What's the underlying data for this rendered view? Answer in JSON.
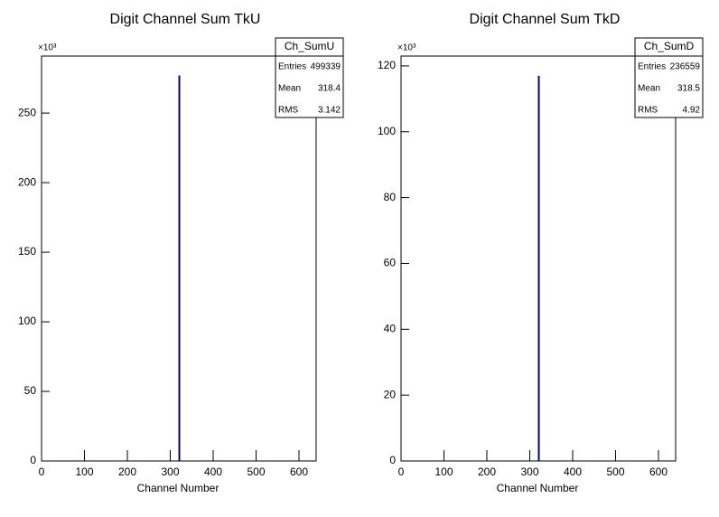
{
  "chart_data": [
    {
      "type": "histogram",
      "title": "Digit Channel Sum TkU",
      "x_label": "Channel Number",
      "y_multiplier": "×10³",
      "bins": [
        319,
        321
      ],
      "values": [
        277
      ],
      "color": "#00007f",
      "xlim": [
        0,
        640
      ],
      "xticks": [
        0,
        100,
        200,
        300,
        400,
        500,
        600
      ],
      "ylim": [
        0,
        291
      ],
      "yticks": [
        0,
        50,
        100,
        150,
        200,
        250
      ],
      "stats": {
        "title": "Ch_SumU",
        "rows": [
          [
            "Entries",
            499339
          ],
          [
            "Mean",
            318.4
          ],
          [
            "RMS",
            3.142
          ]
        ]
      }
    },
    {
      "type": "histogram",
      "title": "Digit Channel Sum TkD",
      "x_label": "Channel Number",
      "y_multiplier": "×10³",
      "bins": [
        319,
        321
      ],
      "values": [
        117
      ],
      "color": "#00007f",
      "xlim": [
        0,
        640
      ],
      "xticks": [
        0,
        100,
        200,
        300,
        400,
        500,
        600
      ],
      "ylim": [
        0,
        123
      ],
      "yticks": [
        0,
        20,
        40,
        60,
        80,
        100,
        120
      ],
      "stats": {
        "title": "Ch_SumD",
        "rows": [
          [
            "Entries",
            236559
          ],
          [
            "Mean",
            318.5
          ],
          [
            "RMS",
            4.92
          ]
        ]
      }
    }
  ]
}
